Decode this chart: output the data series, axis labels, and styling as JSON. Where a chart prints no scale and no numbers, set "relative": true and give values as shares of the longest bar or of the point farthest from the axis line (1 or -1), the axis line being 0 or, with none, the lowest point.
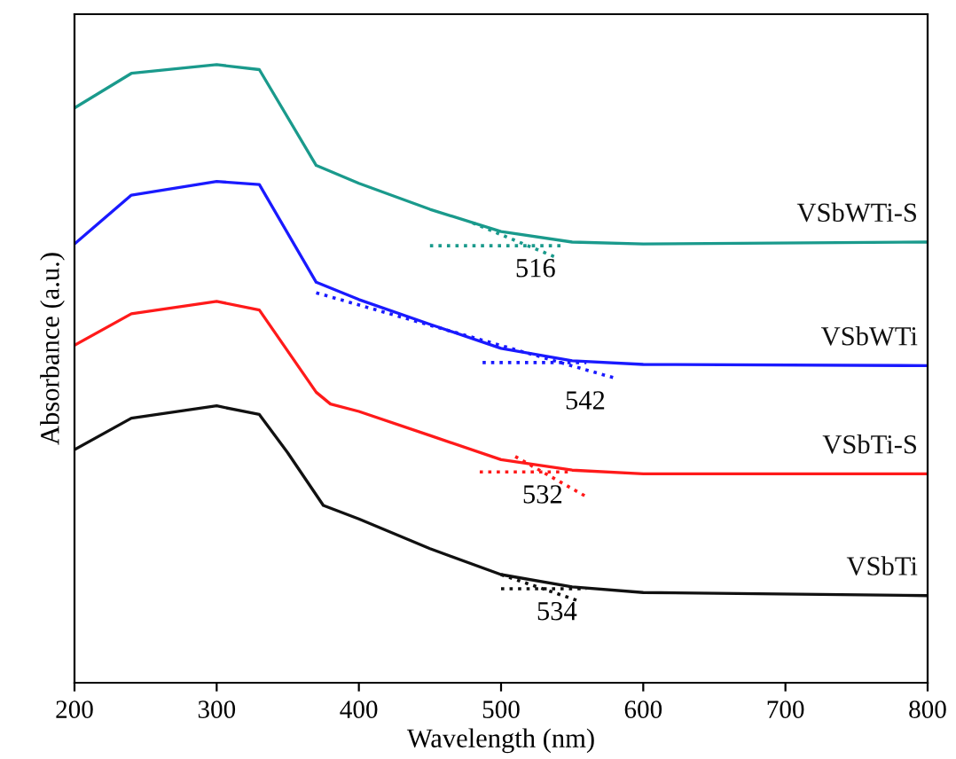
{
  "chart_data": {
    "type": "line",
    "xlabel": "Wavelength (nm)",
    "ylabel": "Absorbance (a.u.)",
    "relative": true,
    "xlim": [
      200,
      800
    ],
    "xticks": [
      200,
      300,
      400,
      500,
      600,
      700,
      800
    ],
    "grid": false,
    "legend": false,
    "line_style": "solid",
    "marker": "none",
    "series": [
      {
        "name": "VSbWTi-S",
        "color": "#1a9a8c",
        "x": [
          200,
          240,
          300,
          330,
          370,
          400,
          450,
          500,
          550,
          600,
          800
        ],
        "values": [
          0.93,
          0.986,
          1.0,
          0.992,
          0.837,
          0.808,
          0.766,
          0.73,
          0.713,
          0.71,
          0.713
        ]
      },
      {
        "name": "VSbWTi",
        "color": "#1a1aff",
        "x": [
          200,
          240,
          300,
          330,
          370,
          400,
          450,
          500,
          550,
          600,
          800
        ],
        "values": [
          0.71,
          0.789,
          0.811,
          0.806,
          0.648,
          0.62,
          0.58,
          0.541,
          0.521,
          0.515,
          0.513
        ]
      },
      {
        "name": "VSbTi-S",
        "color": "#ff1a1a",
        "x": [
          200,
          240,
          300,
          330,
          370,
          380,
          400,
          450,
          500,
          550,
          600,
          800
        ],
        "values": [
          0.546,
          0.597,
          0.617,
          0.603,
          0.47,
          0.451,
          0.439,
          0.4,
          0.361,
          0.344,
          0.338,
          0.338
        ]
      },
      {
        "name": "VSbTi",
        "color": "#111111",
        "x": [
          200,
          240,
          300,
          330,
          350,
          375,
          400,
          450,
          500,
          550,
          600,
          800
        ],
        "values": [
          0.377,
          0.428,
          0.448,
          0.434,
          0.372,
          0.287,
          0.265,
          0.217,
          0.175,
          0.155,
          0.146,
          0.141
        ]
      },
      {
        "type": "line",
        "line_style": "dotted",
        "color": "#1a9a8c",
        "x": [
          450,
          545
        ],
        "values": [
          0.707,
          0.707
        ]
      },
      {
        "type": "line",
        "line_style": "dotted",
        "color": "#1a9a8c",
        "x": [
          480,
          540
        ],
        "values": [
          0.744,
          0.687
        ]
      },
      {
        "type": "line",
        "line_style": "dotted",
        "color": "#1a1aff",
        "x": [
          370,
          580
        ],
        "values": [
          0.631,
          0.493
        ]
      },
      {
        "type": "line",
        "line_style": "dotted",
        "color": "#1a1aff",
        "x": [
          487,
          560
        ],
        "values": [
          0.518,
          0.518
        ]
      },
      {
        "type": "line",
        "line_style": "dotted",
        "color": "#ff1a1a",
        "x": [
          485,
          550
        ],
        "values": [
          0.341,
          0.341
        ]
      },
      {
        "type": "line",
        "line_style": "dotted",
        "color": "#ff1a1a",
        "x": [
          510,
          560
        ],
        "values": [
          0.366,
          0.301
        ]
      },
      {
        "type": "line",
        "line_style": "dotted",
        "color": "#111111",
        "x": [
          500,
          560
        ],
        "values": [
          0.152,
          0.152
        ]
      },
      {
        "type": "line",
        "line_style": "dotted",
        "color": "#111111",
        "x": [
          500,
          555
        ],
        "values": [
          0.175,
          0.132
        ]
      }
    ],
    "annotations": [
      "516",
      "542",
      "532",
      "534"
    ]
  }
}
